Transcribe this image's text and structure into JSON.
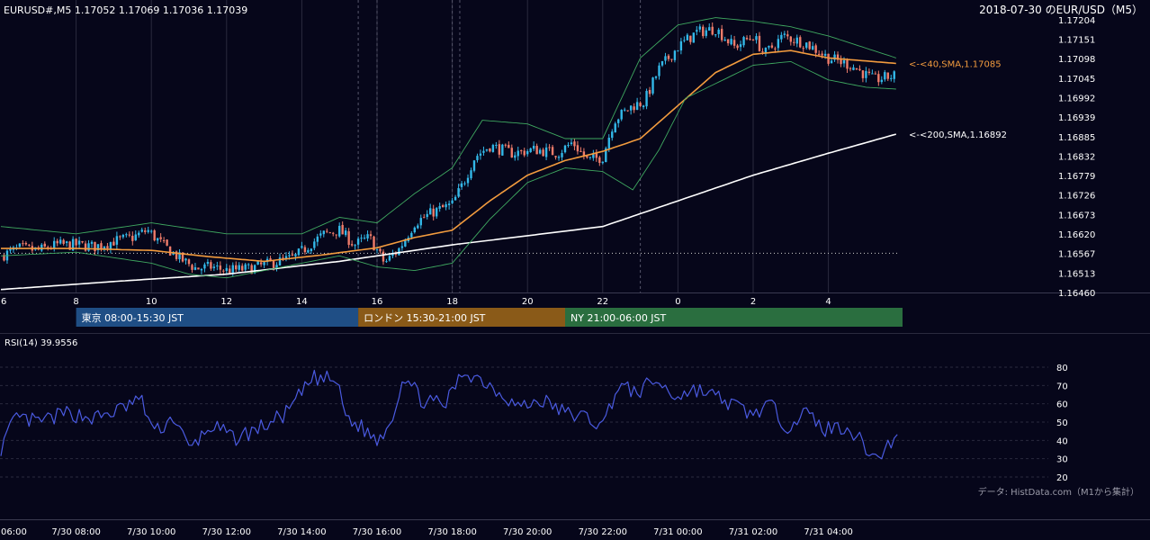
{
  "header": {
    "ohlc": "EURUSD#,M5 1.17052 1.17069 1.17036 1.17039",
    "right_title": "2018-07-30 のEUR/USD（M5）"
  },
  "sessions": [
    {
      "label": "東京 08:00-15:30 JST",
      "color": "#1f4e85"
    },
    {
      "label": "ロンドン 15:30-21:00 JST",
      "color": "#8a5a18"
    },
    {
      "label": "NY 21:00-06:00 JST",
      "color": "#2a6e3f"
    }
  ],
  "rsi": {
    "label": "RSI(14) 39.9556",
    "color": "#4a5ae0"
  },
  "source": "データ: HistData.com（M1から集計）",
  "colors": {
    "bg": "#06061a",
    "up": "#33b8e8",
    "down": "#ef7c6a",
    "sma40": "#f29b3e",
    "sma200": "#ffffff",
    "bb": "#3fa860",
    "rsi": "#4a5ae0"
  },
  "chart_data": [
    {
      "type": "candlestick",
      "title": "EURUSD#,M5",
      "x_hour_ticks": [
        "6",
        "8",
        "10",
        "12",
        "14",
        "16",
        "18",
        "20",
        "22",
        "0",
        "2",
        "4"
      ],
      "y_ticks": [
        "1.17204",
        "1.17151",
        "1.17098",
        "1.17045",
        "1.16992",
        "1.16939",
        "1.16885",
        "1.16832",
        "1.16779",
        "1.16726",
        "1.16673",
        "1.16620",
        "1.16567",
        "1.16513",
        "1.16460"
      ],
      "ylim": [
        1.1646,
        1.17204
      ],
      "series": [
        {
          "name": "<-<40,SMA,1.17085",
          "last": 1.17085,
          "color": "#f29b3e",
          "path": [
            [
              6.0,
              1.1658
            ],
            [
              8.0,
              1.1658
            ],
            [
              10.0,
              1.16575
            ],
            [
              11.5,
              1.16558
            ],
            [
              13.0,
              1.16545
            ],
            [
              14.5,
              1.16562
            ],
            [
              16.0,
              1.16582
            ],
            [
              17.0,
              1.1661
            ],
            [
              18.0,
              1.1663
            ],
            [
              19.0,
              1.1671
            ],
            [
              20.0,
              1.1678
            ],
            [
              21.0,
              1.1682
            ],
            [
              22.0,
              1.16845
            ],
            [
              23.0,
              1.1688
            ],
            [
              24.0,
              1.1697
            ],
            [
              25.0,
              1.1706
            ],
            [
              26.0,
              1.1711
            ],
            [
              27.0,
              1.1712
            ],
            [
              28.0,
              1.171
            ],
            [
              29.8,
              1.17085
            ]
          ]
        },
        {
          "name": "<-<200,SMA,1.16892",
          "last": 1.16892,
          "color": "#ffffff",
          "path": [
            [
              6.0,
              1.16468
            ],
            [
              9.0,
              1.1649
            ],
            [
              12.0,
              1.1651
            ],
            [
              15.0,
              1.16545
            ],
            [
              18.0,
              1.1659
            ],
            [
              20.0,
              1.16615
            ],
            [
              22.0,
              1.1664
            ],
            [
              24.0,
              1.1671
            ],
            [
              26.0,
              1.1678
            ],
            [
              28.0,
              1.1684
            ],
            [
              29.8,
              1.16892
            ]
          ]
        },
        {
          "name": "BB upper",
          "color": "#3fa860",
          "path": [
            [
              6.0,
              1.1664
            ],
            [
              8.0,
              1.1662
            ],
            [
              10.0,
              1.1665
            ],
            [
              12.0,
              1.1662
            ],
            [
              14.0,
              1.1662
            ],
            [
              15.0,
              1.16665
            ],
            [
              16.0,
              1.1665
            ],
            [
              17.0,
              1.1673
            ],
            [
              18.0,
              1.168
            ],
            [
              18.8,
              1.1693
            ],
            [
              20.0,
              1.1692
            ],
            [
              21.0,
              1.1688
            ],
            [
              22.0,
              1.1688
            ],
            [
              23.0,
              1.171
            ],
            [
              24.0,
              1.1719
            ],
            [
              25.0,
              1.1721
            ],
            [
              26.0,
              1.172
            ],
            [
              27.0,
              1.17185
            ],
            [
              28.0,
              1.1716
            ],
            [
              29.8,
              1.171
            ]
          ]
        },
        {
          "name": "BB lower",
          "color": "#3fa860",
          "path": [
            [
              6.0,
              1.1656
            ],
            [
              8.0,
              1.1657
            ],
            [
              10.0,
              1.1654
            ],
            [
              11.0,
              1.1651
            ],
            [
              12.0,
              1.165
            ],
            [
              14.0,
              1.1654
            ],
            [
              15.0,
              1.1656
            ],
            [
              16.0,
              1.1653
            ],
            [
              17.0,
              1.1652
            ],
            [
              18.0,
              1.1654
            ],
            [
              19.0,
              1.1666
            ],
            [
              20.0,
              1.1676
            ],
            [
              21.0,
              1.168
            ],
            [
              22.0,
              1.1679
            ],
            [
              22.8,
              1.1674
            ],
            [
              23.5,
              1.1685
            ],
            [
              24.2,
              1.1699
            ],
            [
              25.0,
              1.1703
            ],
            [
              26.0,
              1.1708
            ],
            [
              27.0,
              1.1709
            ],
            [
              28.0,
              1.1704
            ],
            [
              29.0,
              1.1702
            ],
            [
              29.8,
              1.17015
            ]
          ]
        }
      ],
      "close_path": [
        [
          6.0,
          1.1656
        ],
        [
          6.5,
          1.1658
        ],
        [
          7.0,
          1.16575
        ],
        [
          7.5,
          1.1659
        ],
        [
          8.0,
          1.1659
        ],
        [
          8.5,
          1.16585
        ],
        [
          9.0,
          1.166
        ],
        [
          9.5,
          1.1661
        ],
        [
          9.9,
          1.1663
        ],
        [
          10.3,
          1.1659
        ],
        [
          10.8,
          1.1655
        ],
        [
          11.2,
          1.16525
        ],
        [
          11.6,
          1.1653
        ],
        [
          12.0,
          1.1652
        ],
        [
          12.6,
          1.16525
        ],
        [
          13.2,
          1.1654
        ],
        [
          13.8,
          1.16555
        ],
        [
          14.2,
          1.1659
        ],
        [
          14.6,
          1.1662
        ],
        [
          15.0,
          1.1663
        ],
        [
          15.4,
          1.1659
        ],
        [
          15.8,
          1.1661
        ],
        [
          16.2,
          1.1654
        ],
        [
          16.6,
          1.1658
        ],
        [
          17.0,
          1.1665
        ],
        [
          17.5,
          1.1668
        ],
        [
          18.0,
          1.167
        ],
        [
          18.3,
          1.1676
        ],
        [
          18.6,
          1.1683
        ],
        [
          19.0,
          1.1686
        ],
        [
          19.6,
          1.1684
        ],
        [
          20.2,
          1.1685
        ],
        [
          20.8,
          1.1684
        ],
        [
          21.2,
          1.1687
        ],
        [
          21.6,
          1.1682
        ],
        [
          22.0,
          1.1683
        ],
        [
          22.3,
          1.1693
        ],
        [
          22.8,
          1.1697
        ],
        [
          23.1,
          1.1698
        ],
        [
          23.5,
          1.1707
        ],
        [
          24.0,
          1.1713
        ],
        [
          24.5,
          1.1717
        ],
        [
          25.0,
          1.1718
        ],
        [
          25.5,
          1.1713
        ],
        [
          26.0,
          1.1716
        ],
        [
          26.3,
          1.1711
        ],
        [
          26.8,
          1.1716
        ],
        [
          27.4,
          1.1714
        ],
        [
          28.0,
          1.171
        ],
        [
          28.6,
          1.1708
        ],
        [
          29.2,
          1.1704
        ],
        [
          29.8,
          1.17052
        ]
      ],
      "ref_line": 1.16567
    },
    {
      "type": "line",
      "title": "RSI(14) 39.9556",
      "y_ticks": [
        "80",
        "70",
        "60",
        "50",
        "40",
        "30",
        "20"
      ],
      "ylim": [
        20,
        80
      ],
      "x_ticks": [
        "06:00",
        "7/30 08:00",
        "7/30 10:00",
        "7/30 12:00",
        "7/30 14:00",
        "7/30 16:00",
        "7/30 18:00",
        "7/30 20:00",
        "7/30 22:00",
        "7/31 00:00",
        "7/31 02:00",
        "7/31 04:00"
      ],
      "x_tick_hours": [
        6,
        8,
        10,
        12,
        14,
        16,
        18,
        20,
        22,
        24,
        26,
        28
      ],
      "anchors": [
        [
          6.0,
          36
        ],
        [
          6.4,
          52
        ],
        [
          7.0,
          50
        ],
        [
          7.8,
          55
        ],
        [
          8.5,
          52
        ],
        [
          9.2,
          57
        ],
        [
          9.7,
          63
        ],
        [
          10.1,
          44
        ],
        [
          10.6,
          53
        ],
        [
          11.0,
          35
        ],
        [
          11.6,
          48
        ],
        [
          12.2,
          41
        ],
        [
          12.8,
          46
        ],
        [
          13.2,
          50
        ],
        [
          13.6,
          55
        ],
        [
          14.3,
          74
        ],
        [
          14.9,
          73
        ],
        [
          15.2,
          52
        ],
        [
          15.6,
          47
        ],
        [
          16.0,
          40
        ],
        [
          16.4,
          52
        ],
        [
          16.7,
          76
        ],
        [
          17.2,
          62
        ],
        [
          17.8,
          59
        ],
        [
          18.3,
          78
        ],
        [
          18.8,
          73
        ],
        [
          19.3,
          66
        ],
        [
          19.8,
          58
        ],
        [
          20.4,
          62
        ],
        [
          21.0,
          55
        ],
        [
          21.5,
          53
        ],
        [
          22.0,
          48
        ],
        [
          22.4,
          70
        ],
        [
          22.9,
          66
        ],
        [
          23.4,
          73
        ],
        [
          23.9,
          64
        ],
        [
          24.5,
          68
        ],
        [
          25.0,
          64
        ],
        [
          25.6,
          58
        ],
        [
          26.0,
          54
        ],
        [
          26.4,
          60
        ],
        [
          26.9,
          48
        ],
        [
          27.4,
          55
        ],
        [
          27.9,
          46
        ],
        [
          28.5,
          48
        ],
        [
          29.0,
          36
        ],
        [
          29.3,
          30
        ],
        [
          29.6,
          38
        ],
        [
          29.85,
          41
        ]
      ]
    }
  ]
}
